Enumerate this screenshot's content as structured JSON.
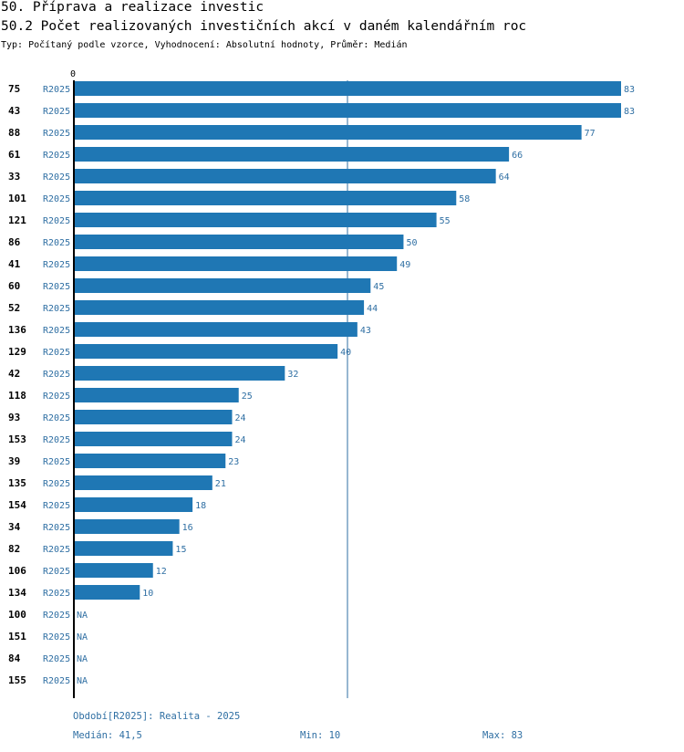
{
  "header": {
    "title": "50. Příprava a realizace investic",
    "subtitle": "50.2 Počet realizovaných investičních akcí v daném kalendářním roc",
    "type_line": "Typ: Počítaný podle vzorce, Vyhodnocení: Absolutní hodnoty, Průměr: Medián"
  },
  "colors": {
    "bar": "#1f77b4",
    "label": "#2f6fa3",
    "axis": "#000000"
  },
  "chart_data": {
    "type": "bar",
    "orientation": "horizontal",
    "axis_zero_label": "0",
    "xlim": [
      0,
      83
    ],
    "median": 41.5,
    "series": [
      {
        "name": "R2025"
      }
    ],
    "rows": [
      {
        "id": "75",
        "period": "R2025",
        "value": 83,
        "label": "83"
      },
      {
        "id": "43",
        "period": "R2025",
        "value": 83,
        "label": "83"
      },
      {
        "id": "88",
        "period": "R2025",
        "value": 77,
        "label": "77"
      },
      {
        "id": "61",
        "period": "R2025",
        "value": 66,
        "label": "66"
      },
      {
        "id": "33",
        "period": "R2025",
        "value": 64,
        "label": "64"
      },
      {
        "id": "101",
        "period": "R2025",
        "value": 58,
        "label": "58"
      },
      {
        "id": "121",
        "period": "R2025",
        "value": 55,
        "label": "55"
      },
      {
        "id": "86",
        "period": "R2025",
        "value": 50,
        "label": "50"
      },
      {
        "id": "41",
        "period": "R2025",
        "value": 49,
        "label": "49"
      },
      {
        "id": "60",
        "period": "R2025",
        "value": 45,
        "label": "45"
      },
      {
        "id": "52",
        "period": "R2025",
        "value": 44,
        "label": "44"
      },
      {
        "id": "136",
        "period": "R2025",
        "value": 43,
        "label": "43"
      },
      {
        "id": "129",
        "period": "R2025",
        "value": 40,
        "label": "40"
      },
      {
        "id": "42",
        "period": "R2025",
        "value": 32,
        "label": "32"
      },
      {
        "id": "118",
        "period": "R2025",
        "value": 25,
        "label": "25"
      },
      {
        "id": "93",
        "period": "R2025",
        "value": 24,
        "label": "24"
      },
      {
        "id": "153",
        "period": "R2025",
        "value": 24,
        "label": "24"
      },
      {
        "id": "39",
        "period": "R2025",
        "value": 23,
        "label": "23"
      },
      {
        "id": "135",
        "period": "R2025",
        "value": 21,
        "label": "21"
      },
      {
        "id": "154",
        "period": "R2025",
        "value": 18,
        "label": "18"
      },
      {
        "id": "34",
        "period": "R2025",
        "value": 16,
        "label": "16"
      },
      {
        "id": "82",
        "period": "R2025",
        "value": 15,
        "label": "15"
      },
      {
        "id": "106",
        "period": "R2025",
        "value": 12,
        "label": "12"
      },
      {
        "id": "134",
        "period": "R2025",
        "value": 10,
        "label": "10"
      },
      {
        "id": "100",
        "period": "R2025",
        "value": null,
        "label": "NA"
      },
      {
        "id": "151",
        "period": "R2025",
        "value": null,
        "label": "NA"
      },
      {
        "id": "84",
        "period": "R2025",
        "value": null,
        "label": "NA"
      },
      {
        "id": "155",
        "period": "R2025",
        "value": null,
        "label": "NA"
      }
    ]
  },
  "footer": {
    "period_legend": "Období[R2025]: Realita - 2025",
    "median": "Medián: 41,5",
    "min": "Min: 10",
    "max": "Max: 83"
  }
}
